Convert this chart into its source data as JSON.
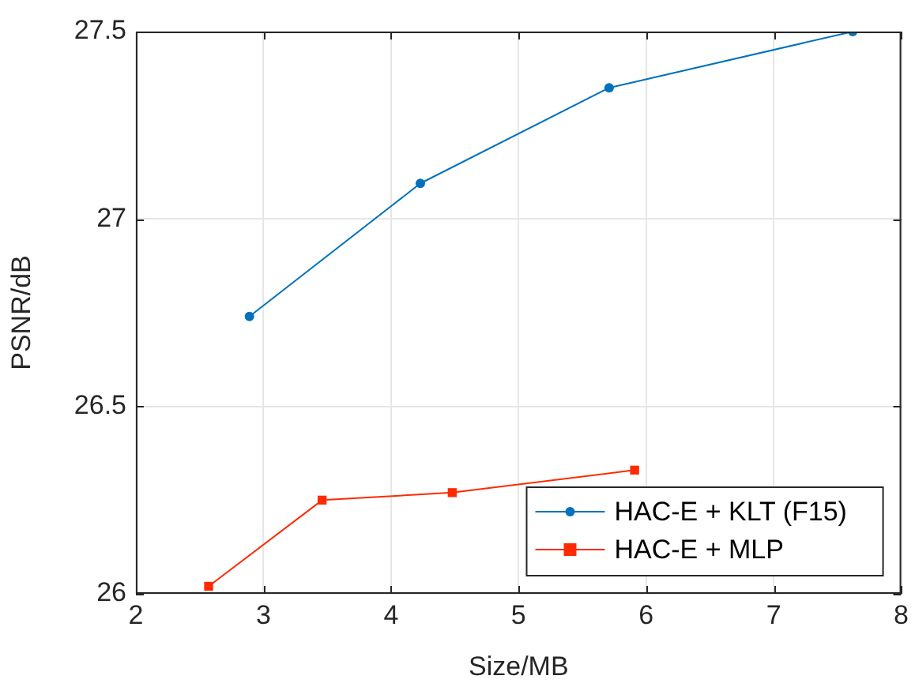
{
  "chart_data": {
    "type": "line",
    "xlabel": "Size/MB",
    "ylabel": "PSNR/dB",
    "xlim": [
      2,
      8
    ],
    "xticks": [
      2,
      3,
      4,
      5,
      6,
      7,
      8
    ],
    "ylim": [
      26,
      27.5
    ],
    "yticks": [
      26,
      26.5,
      27,
      27.5
    ],
    "grid": true,
    "legend": "bottom right",
    "series": [
      {
        "name": "HAC-E + KLT (F15)",
        "color": "#0072bd",
        "marker": "circle",
        "x": [
          2.89,
          4.23,
          5.71,
          7.62
        ],
        "values": [
          26.74,
          27.095,
          27.35,
          27.5
        ]
      },
      {
        "name": "HAC-E + MLP",
        "color": "#ff2a00",
        "marker": "square",
        "x": [
          2.57,
          3.46,
          4.48,
          5.91
        ],
        "values": [
          26.02,
          26.25,
          26.27,
          26.33
        ]
      }
    ]
  }
}
